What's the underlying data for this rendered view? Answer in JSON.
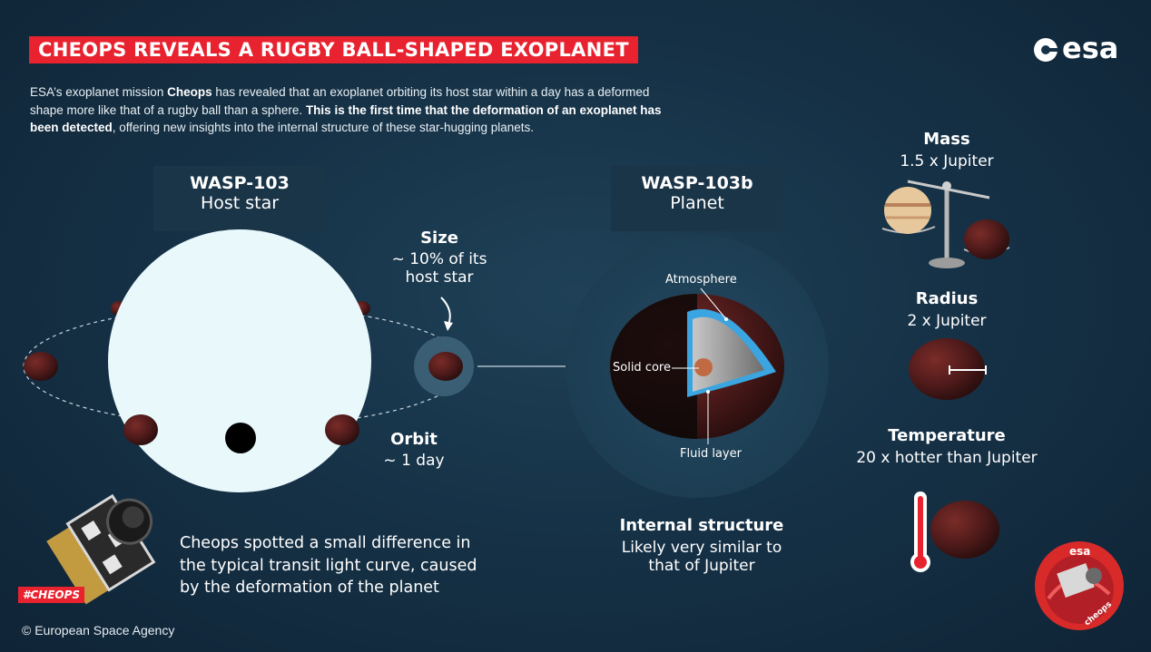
{
  "title": "CHEOPS REVEALS A RUGBY BALL-SHAPED EXOPLANET",
  "logo_text": "esa",
  "intro": {
    "part1": "ESA’s exoplanet mission ",
    "cheops": "Cheops",
    "part2": " has revealed that an exoplanet orbiting its host star within a day has a deformed shape more like that of a rugby ball than a sphere. ",
    "highlight": "This is the first time that the deformation of an exoplanet has been detected",
    "part3": ", offering new insights into the internal structure of these star-hugging planets."
  },
  "star_box": {
    "name": "WASP-103",
    "subtitle": "Host star"
  },
  "planet_box": {
    "name": "WASP-103b",
    "subtitle": "Planet"
  },
  "size": {
    "heading": "Size",
    "line1": "~ 10% of its",
    "line2": "host star"
  },
  "orbit": {
    "heading": "Orbit",
    "value": "~ 1 day"
  },
  "structure_labels": {
    "atmosphere": "Atmosphere",
    "solid_core": "Solid core",
    "fluid_layer": "Fluid layer"
  },
  "internal_structure": {
    "heading": "Internal structure",
    "line1": "Likely very similar to",
    "line2": "that of Jupiter"
  },
  "stats": {
    "mass": {
      "heading": "Mass",
      "value": "1.5 x Jupiter"
    },
    "radius": {
      "heading": "Radius",
      "value": "2 x Jupiter"
    },
    "temperature": {
      "heading": "Temperature",
      "value": "20 x hotter than Jupiter"
    }
  },
  "caption": "Cheops spotted a small difference in the typical transit light curve, caused by the deformation of the planet",
  "hashtag": "#CHEOPS",
  "badge_logo": "esa",
  "badge_text": "cheops",
  "copyright": "© European Space Agency",
  "colors": {
    "accent_red": "#e8222e",
    "star": "#e8f8fb",
    "planet": "#5a1f1e",
    "atmosphere_blue": "#3aa5e0"
  }
}
